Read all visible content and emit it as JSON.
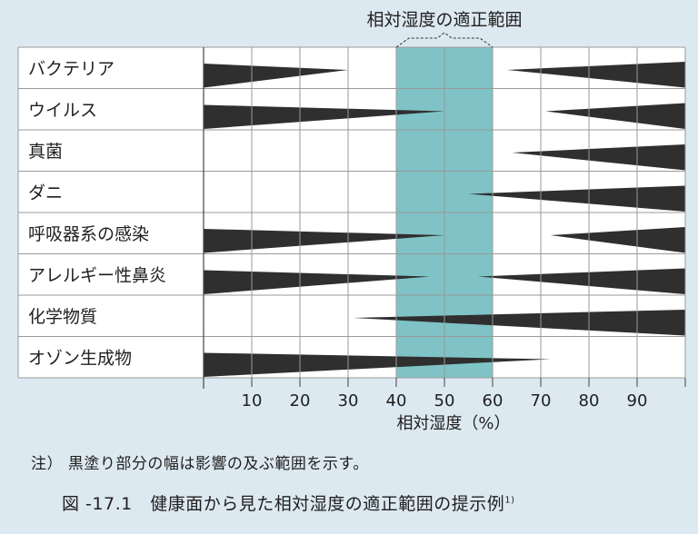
{
  "chart_data": {
    "type": "bar",
    "title": "",
    "optimal_range_label": "相対湿度の適正範囲",
    "optimal_range": [
      40,
      60
    ],
    "xlabel": "相対湿度（%）",
    "xlim": [
      0,
      100
    ],
    "xticks": [
      10,
      20,
      30,
      40,
      50,
      60,
      70,
      80,
      90
    ],
    "grid": true,
    "categories": [
      "バクテリア",
      "ウイルス",
      "真菌",
      "ダニ",
      "呼吸器系の感染",
      "アレルギー性鼻炎",
      "化学物質",
      "オゾン生成物"
    ],
    "series": [
      {
        "low": {
          "from": 0,
          "to": 30
        },
        "high": {
          "from": 63,
          "to": 100
        }
      },
      {
        "low": {
          "from": 0,
          "to": 50
        },
        "high": {
          "from": 71,
          "to": 100
        }
      },
      {
        "low": null,
        "high": {
          "from": 64,
          "to": 100
        }
      },
      {
        "low": null,
        "high": {
          "from": 55,
          "to": 100
        }
      },
      {
        "low": {
          "from": 0,
          "to": 50
        },
        "high": {
          "from": 72,
          "to": 100
        }
      },
      {
        "low": {
          "from": 0,
          "to": 47
        },
        "high": {
          "from": 57,
          "to": 100
        }
      },
      {
        "low": null,
        "high": {
          "from": 31,
          "to": 100
        }
      },
      {
        "low": {
          "from": 0,
          "to": 72
        },
        "high": null
      }
    ]
  },
  "note": "注）  黒塗り部分の幅は影響の及ぶ範囲を示す。",
  "caption": "図 -17.1　健康面から見た相対湿度の適正範囲の提示例",
  "caption_ref": "1)",
  "colors": {
    "background": "#dde9f1",
    "optimal_fill": "#7fc3c6",
    "wedge": "#2f2f2f",
    "grid": "#9a9a9a",
    "cell": "#ffffff"
  }
}
